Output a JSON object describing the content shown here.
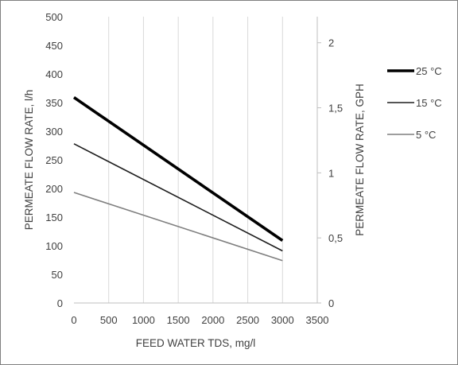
{
  "chart_data": {
    "type": "line",
    "xlabel": "FEED WATER TDS, mg/l",
    "ylabel": "PERMEATE FLOW RATE, l/h",
    "y2label": "PERMEATE FLOW RATE, GPH",
    "xlim": [
      0,
      3500
    ],
    "ylim": [
      0,
      500
    ],
    "y2lim": [
      0,
      2.2
    ],
    "xticks": [
      "0",
      "500",
      "1000",
      "1500",
      "2000",
      "2500",
      "3000",
      "3500"
    ],
    "yticks": [
      "0",
      "50",
      "100",
      "150",
      "200",
      "250",
      "300",
      "350",
      "400",
      "450",
      "500"
    ],
    "y2ticks": [
      "0",
      "0,5",
      "1",
      "1,5",
      "2"
    ],
    "grid": "vertical",
    "legend_position": "right",
    "series": [
      {
        "name": "25 °C",
        "x": [
          0,
          3000
        ],
        "y": [
          359,
          109
        ],
        "color": "#000000",
        "width": 3.6
      },
      {
        "name": "15 °C",
        "x": [
          0,
          3000
        ],
        "y": [
          278,
          91
        ],
        "color": "#1f1f1f",
        "width": 1.6
      },
      {
        "name": "5 °C",
        "x": [
          0,
          3000
        ],
        "y": [
          193,
          74
        ],
        "color": "#7f7f7f",
        "width": 1.6
      }
    ]
  }
}
